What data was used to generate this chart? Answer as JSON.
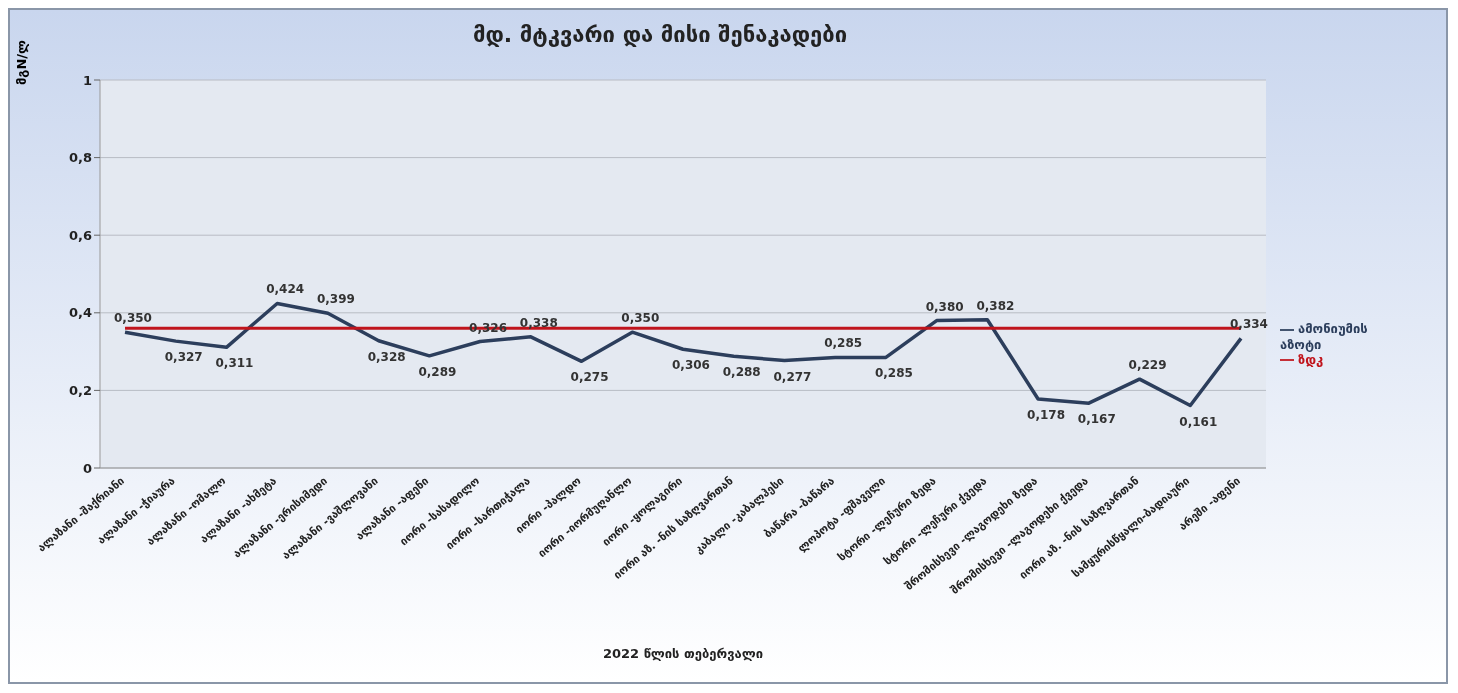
{
  "chart_data": {
    "type": "line",
    "title": "მდ. მტკვარი და მისი შენაკადები",
    "ylabel": "მგN/ლ",
    "xlabel": "2022 წლის თებერვალი",
    "categories": [
      "ალაზანი -შაქრიანი",
      "ალაზანი -ჭიაურა",
      "ალაზანი -ომალო",
      "ალაზანი -ახმეტა",
      "ალაზანი -ერისიმედი",
      "ალაზანი -ვაშლოვანი",
      "ალაზანი -აფენი",
      "იორი -სასადილო",
      "იორი -სართიჭალა",
      "იორი -პალდო",
      "იორი -იორმუღანლო",
      "იორი -ყოლაგირი",
      "იორი აზ. -ნის საზღვართან",
      "კაბალი -კაბალჰესი",
      "ბაწარა -ბაწარა",
      "ლოპოტა -ფშაველი",
      "სტორი -ლეჩური ზედა",
      "სტორი -ლეჩური ქვედა",
      "შრომისხევი -ლაგოდეხი ზედა",
      "შრომისხევი -ლაგოდეხი ქვედა",
      "იორი აზ. -ნის საზღვართან",
      "სამყურისწყალი-ბადიაური",
      "არეში -აფენი"
    ],
    "series": [
      {
        "name": "ამონიუმის აზოტი",
        "color": "#2c3e5c",
        "values": [
          0.35,
          0.327,
          0.311,
          0.424,
          0.399,
          0.328,
          0.289,
          0.326,
          0.338,
          0.275,
          0.35,
          0.306,
          0.288,
          0.277,
          0.285,
          0.285,
          0.38,
          0.382,
          0.178,
          0.167,
          0.229,
          0.161,
          0.334
        ],
        "value_labels": [
          "0,350",
          "0,327",
          "0,311",
          "0,424",
          "0,399",
          "0,328",
          "0,289",
          "0,326",
          "0,338",
          "0,275",
          "0,350",
          "0,306",
          "0,288",
          "0,277",
          "0,285",
          "0,285",
          "0,380",
          "0,382",
          "0,178",
          "0,167",
          "0,229",
          "0,161",
          "0,334"
        ]
      },
      {
        "name": "ზდკ",
        "color": "#c0141c",
        "values": [
          0.36,
          0.36,
          0.36,
          0.36,
          0.36,
          0.36,
          0.36,
          0.36,
          0.36,
          0.36,
          0.36,
          0.36,
          0.36,
          0.36,
          0.36,
          0.36,
          0.36,
          0.36,
          0.36,
          0.36,
          0.36,
          0.36,
          0.36
        ]
      }
    ],
    "ylim": [
      0,
      1
    ],
    "yticks": [
      0,
      {
        "value": 0.2,
        "label": "0,2"
      },
      {
        "value": 0.4,
        "label": "0,4"
      },
      {
        "value": 0.6,
        "label": "0,6"
      },
      {
        "value": 0.8,
        "label": "0,8"
      },
      1
    ],
    "grid": "y",
    "legend": "right",
    "marker": "none",
    "line_style": "solid"
  }
}
